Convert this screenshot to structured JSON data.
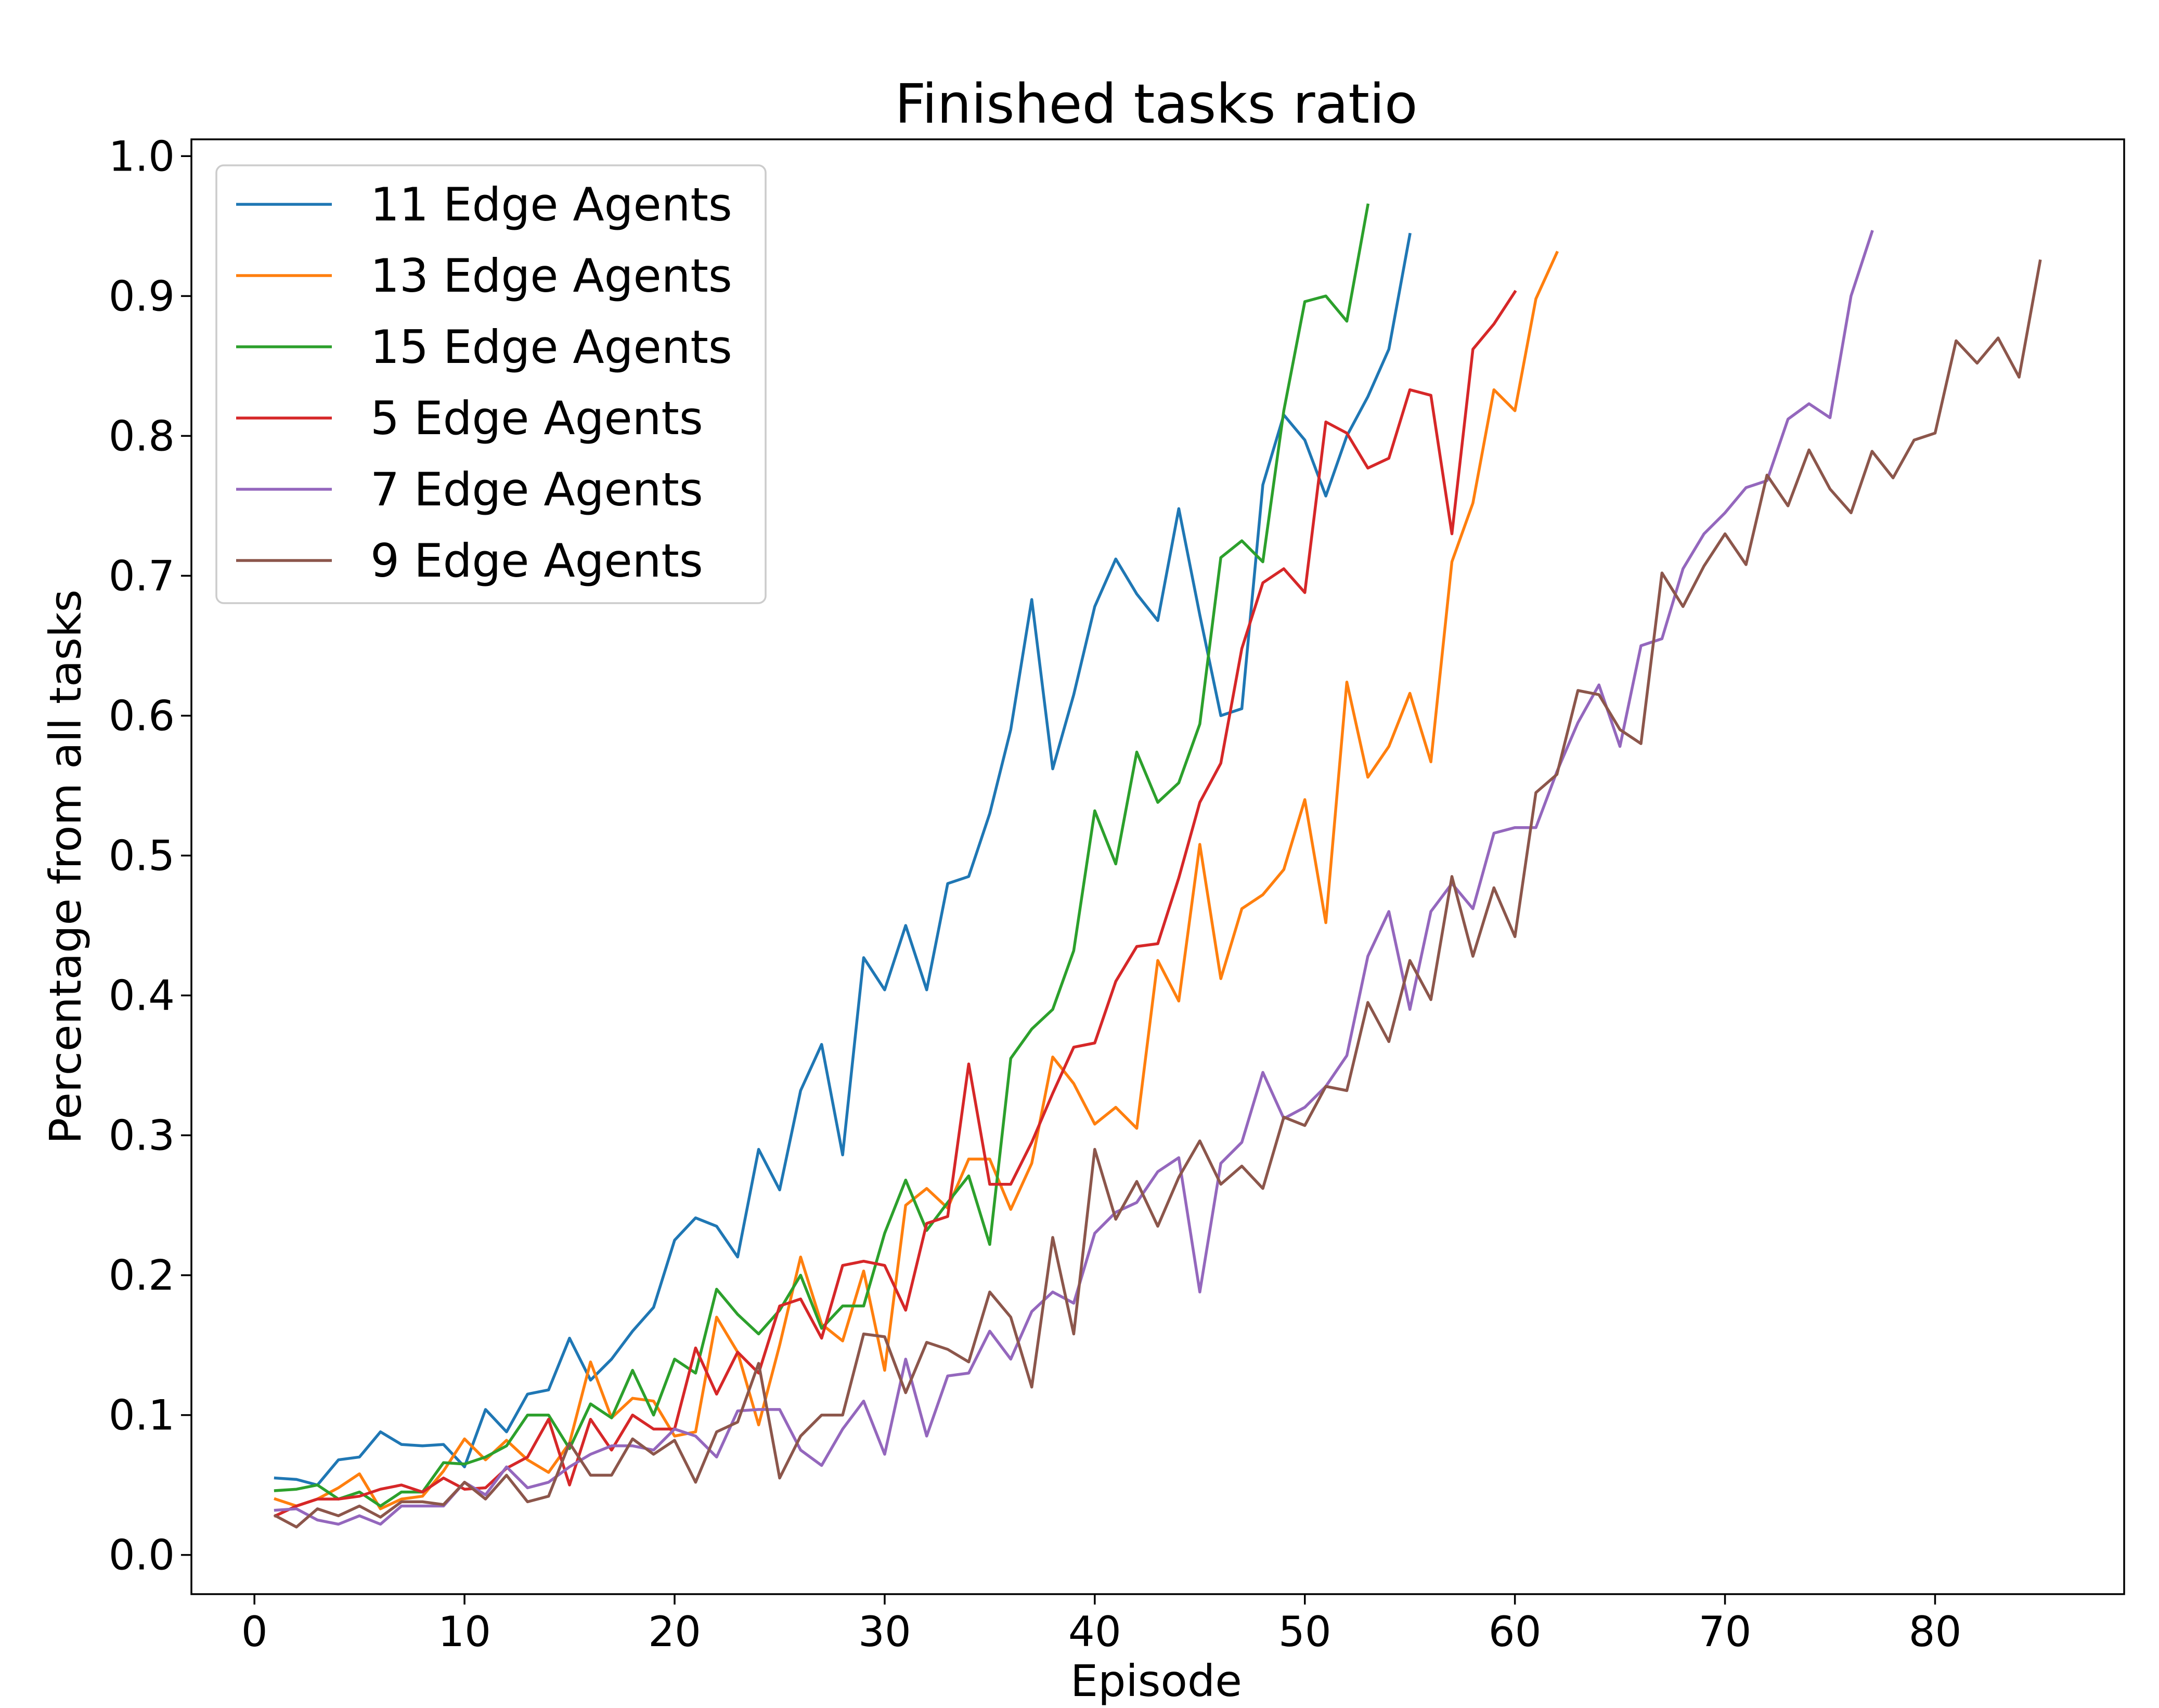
{
  "chart_data": {
    "type": "line",
    "title": "Finished tasks ratio",
    "xlabel": "Episode",
    "ylabel": "Percentage from all tasks",
    "xlim": [
      -3,
      89
    ],
    "ylim": [
      -0.028,
      1.012
    ],
    "xticks": [
      0,
      10,
      20,
      30,
      40,
      50,
      60,
      70,
      80
    ],
    "yticks": [
      0.0,
      0.1,
      0.2,
      0.3,
      0.4,
      0.5,
      0.6,
      0.7,
      0.8,
      0.9,
      1.0
    ],
    "grid": false,
    "legend_position": "top-left",
    "series": [
      {
        "name": "11 Edge Agents",
        "color": "#1f77b4",
        "x_start": 1,
        "values": [
          0.055,
          0.054,
          0.05,
          0.068,
          0.07,
          0.088,
          0.079,
          0.078,
          0.079,
          0.063,
          0.104,
          0.088,
          0.115,
          0.118,
          0.155,
          0.125,
          0.14,
          0.16,
          0.177,
          0.225,
          0.241,
          0.235,
          0.213,
          0.29,
          0.261,
          0.332,
          0.365,
          0.286,
          0.427,
          0.404,
          0.45,
          0.404,
          0.48,
          0.485,
          0.53,
          0.59,
          0.683,
          0.562,
          0.615,
          0.678,
          0.712,
          0.687,
          0.668,
          0.748,
          0.672,
          0.6,
          0.605,
          0.765,
          0.815,
          0.797,
          0.757,
          0.8,
          0.828,
          0.862,
          0.944
        ]
      },
      {
        "name": "13 Edge Agents",
        "color": "#ff7f0e",
        "x_start": 1,
        "values": [
          0.04,
          0.035,
          0.04,
          0.048,
          0.058,
          0.033,
          0.04,
          0.042,
          0.06,
          0.083,
          0.068,
          0.082,
          0.068,
          0.059,
          0.08,
          0.138,
          0.098,
          0.112,
          0.11,
          0.085,
          0.088,
          0.17,
          0.145,
          0.093,
          0.15,
          0.213,
          0.165,
          0.153,
          0.203,
          0.132,
          0.25,
          0.262,
          0.248,
          0.283,
          0.283,
          0.247,
          0.28,
          0.356,
          0.337,
          0.308,
          0.32,
          0.305,
          0.425,
          0.396,
          0.508,
          0.412,
          0.462,
          0.472,
          0.49,
          0.54,
          0.452,
          0.624,
          0.556,
          0.578,
          0.616,
          0.567,
          0.71,
          0.752,
          0.833,
          0.818,
          0.898,
          0.931
        ]
      },
      {
        "name": "15 Edge Agents",
        "color": "#2ca02c",
        "x_start": 1,
        "values": [
          0.046,
          0.047,
          0.05,
          0.04,
          0.045,
          0.035,
          0.045,
          0.045,
          0.066,
          0.065,
          0.07,
          0.078,
          0.1,
          0.1,
          0.076,
          0.108,
          0.098,
          0.132,
          0.1,
          0.14,
          0.13,
          0.19,
          0.172,
          0.158,
          0.175,
          0.2,
          0.162,
          0.178,
          0.178,
          0.23,
          0.268,
          0.232,
          0.252,
          0.271,
          0.222,
          0.355,
          0.376,
          0.39,
          0.432,
          0.532,
          0.494,
          0.574,
          0.538,
          0.552,
          0.594,
          0.713,
          0.725,
          0.71,
          0.818,
          0.896,
          0.9,
          0.882,
          0.965
        ]
      },
      {
        "name": "5 Edge Agents",
        "color": "#d62728",
        "x_start": 1,
        "values": [
          0.028,
          0.035,
          0.04,
          0.04,
          0.042,
          0.047,
          0.05,
          0.045,
          0.055,
          0.047,
          0.048,
          0.062,
          0.07,
          0.097,
          0.05,
          0.097,
          0.075,
          0.1,
          0.09,
          0.09,
          0.148,
          0.115,
          0.145,
          0.13,
          0.178,
          0.183,
          0.155,
          0.207,
          0.21,
          0.207,
          0.175,
          0.237,
          0.242,
          0.351,
          0.265,
          0.265,
          0.295,
          0.33,
          0.363,
          0.366,
          0.41,
          0.435,
          0.437,
          0.484,
          0.538,
          0.566,
          0.648,
          0.695,
          0.705,
          0.688,
          0.81,
          0.802,
          0.777,
          0.784,
          0.833,
          0.829,
          0.73,
          0.862,
          0.88,
          0.903
        ]
      },
      {
        "name": "7 Edge Agents",
        "color": "#9467bd",
        "x_start": 1,
        "values": [
          0.032,
          0.033,
          0.025,
          0.022,
          0.028,
          0.022,
          0.035,
          0.035,
          0.035,
          0.052,
          0.043,
          0.063,
          0.048,
          0.052,
          0.063,
          0.072,
          0.078,
          0.078,
          0.075,
          0.09,
          0.085,
          0.07,
          0.103,
          0.104,
          0.104,
          0.075,
          0.064,
          0.09,
          0.11,
          0.072,
          0.14,
          0.085,
          0.128,
          0.13,
          0.16,
          0.14,
          0.174,
          0.188,
          0.18,
          0.23,
          0.245,
          0.252,
          0.274,
          0.284,
          0.188,
          0.28,
          0.295,
          0.345,
          0.312,
          0.32,
          0.335,
          0.357,
          0.428,
          0.46,
          0.39,
          0.46,
          0.48,
          0.462,
          0.516,
          0.52,
          0.52,
          0.56,
          0.595,
          0.622,
          0.578,
          0.65,
          0.655,
          0.705,
          0.73,
          0.745,
          0.763,
          0.768,
          0.812,
          0.823,
          0.813,
          0.9,
          0.946
        ]
      },
      {
        "name": "9 Edge Agents",
        "color": "#8c564b",
        "x_start": 1,
        "values": [
          0.028,
          0.02,
          0.033,
          0.028,
          0.035,
          0.027,
          0.038,
          0.038,
          0.036,
          0.052,
          0.04,
          0.057,
          0.038,
          0.042,
          0.08,
          0.057,
          0.057,
          0.083,
          0.072,
          0.082,
          0.052,
          0.088,
          0.095,
          0.137,
          0.055,
          0.085,
          0.1,
          0.1,
          0.158,
          0.156,
          0.116,
          0.152,
          0.147,
          0.138,
          0.188,
          0.17,
          0.12,
          0.227,
          0.158,
          0.29,
          0.24,
          0.267,
          0.235,
          0.27,
          0.296,
          0.265,
          0.278,
          0.262,
          0.313,
          0.307,
          0.335,
          0.332,
          0.395,
          0.367,
          0.425,
          0.397,
          0.485,
          0.428,
          0.477,
          0.442,
          0.545,
          0.558,
          0.618,
          0.615,
          0.59,
          0.58,
          0.702,
          0.678,
          0.707,
          0.73,
          0.708,
          0.772,
          0.75,
          0.79,
          0.762,
          0.745,
          0.789,
          0.77,
          0.797,
          0.802,
          0.868,
          0.852,
          0.87,
          0.842,
          0.925
        ]
      }
    ]
  }
}
